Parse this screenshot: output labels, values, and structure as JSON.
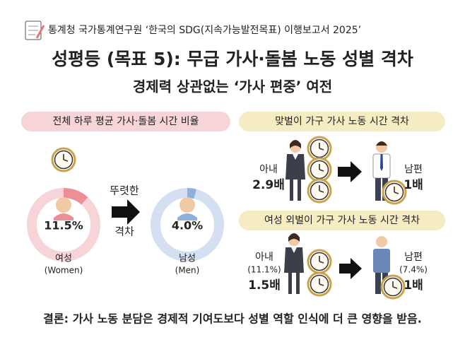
{
  "header": {
    "source": "통계청 국가통계연구원 ‘한국의 SDG(지속가능발전목표) 이행보고서 2025’",
    "title": "성평등 (목표 5): 무급 가사·돌봄 노동 성별 격차",
    "subtitle": "경제력 상관없는 ‘가사 편중’ 여전"
  },
  "time_share": {
    "title": "전체 하루 평균 가사·돌봄 시간 비율",
    "gap_text": [
      "뚜렷한",
      "격차"
    ],
    "items": [
      {
        "name": "여성",
        "english": "(Women)",
        "value": 11.5,
        "value_label": "11.5%"
      },
      {
        "name": "남성",
        "english": "(Men)",
        "value": 4.0,
        "value_label": "4.0%"
      }
    ]
  },
  "dual_income": {
    "title": "맞벌이 가구 가사 노동 시간 격차",
    "wife": {
      "label": "아내",
      "ratio": "2.9배"
    },
    "husband": {
      "label": "남편",
      "ratio": "1배"
    }
  },
  "female_earner": {
    "title": "여성 외벌이 가구 가사 노동 시간 격차",
    "wife": {
      "label": "아내",
      "share": "(11.1%)",
      "ratio": "1.5배"
    },
    "husband": {
      "label": "남편",
      "share": "(7.4%)",
      "ratio": "1배"
    }
  },
  "conclusion": "결론: 가사 노동 분담은 경제적 기여도보다 성별 역할 인식에 더 큰 영향을 받음."
}
